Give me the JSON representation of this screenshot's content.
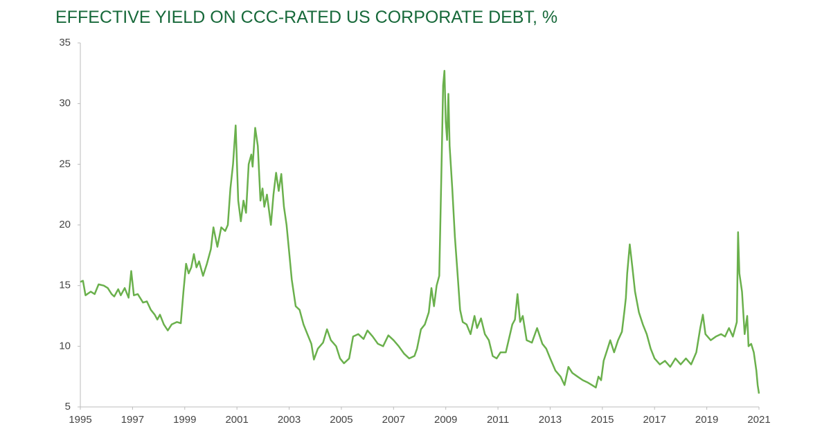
{
  "chart_data": {
    "type": "line",
    "title": "EFFECTIVE YIELD ON CCC-RATED US CORPORATE DEBT, %",
    "color": "#6ab04c",
    "x": [
      1995.0,
      1995.1,
      1995.2,
      1995.4,
      1995.55,
      1995.7,
      1995.9,
      1996.05,
      1996.2,
      1996.3,
      1996.45,
      1996.55,
      1996.7,
      1996.85,
      1996.95,
      1997.05,
      1997.2,
      1997.4,
      1997.55,
      1997.7,
      1997.85,
      1997.95,
      1998.05,
      1998.2,
      1998.35,
      1998.5,
      1998.7,
      1998.85,
      1998.95,
      1999.05,
      1999.15,
      1999.25,
      1999.35,
      1999.45,
      1999.55,
      1999.7,
      1999.85,
      2000.0,
      2000.1,
      2000.25,
      2000.4,
      2000.55,
      2000.65,
      2000.75,
      2000.85,
      2000.95,
      2001.05,
      2001.15,
      2001.25,
      2001.35,
      2001.45,
      2001.55,
      2001.6,
      2001.7,
      2001.8,
      2001.9,
      2001.98,
      2002.05,
      2002.15,
      2002.3,
      2002.4,
      2002.5,
      2002.6,
      2002.7,
      2002.8,
      2002.9,
      2003.0,
      2003.1,
      2003.25,
      2003.4,
      2003.55,
      2003.7,
      2003.85,
      2003.95,
      2004.1,
      2004.3,
      2004.45,
      2004.6,
      2004.8,
      2004.95,
      2005.1,
      2005.3,
      2005.45,
      2005.65,
      2005.85,
      2006.0,
      2006.2,
      2006.4,
      2006.6,
      2006.8,
      2007.0,
      2007.2,
      2007.4,
      2007.6,
      2007.8,
      2007.9,
      2008.05,
      2008.2,
      2008.35,
      2008.45,
      2008.55,
      2008.65,
      2008.75,
      2008.8,
      2008.85,
      2008.9,
      2008.95,
      2009.0,
      2009.05,
      2009.1,
      2009.15,
      2009.25,
      2009.35,
      2009.45,
      2009.55,
      2009.65,
      2009.8,
      2009.95,
      2010.1,
      2010.2,
      2010.35,
      2010.5,
      2010.65,
      2010.8,
      2010.95,
      2011.1,
      2011.3,
      2011.55,
      2011.65,
      2011.75,
      2011.85,
      2011.95,
      2012.1,
      2012.3,
      2012.5,
      2012.7,
      2012.85,
      2013.0,
      2013.2,
      2013.4,
      2013.55,
      2013.7,
      2013.85,
      2014.05,
      2014.25,
      2014.45,
      2014.6,
      2014.75,
      2014.85,
      2014.95,
      2015.05,
      2015.2,
      2015.3,
      2015.45,
      2015.6,
      2015.75,
      2015.85,
      2015.9,
      2015.95,
      2016.05,
      2016.15,
      2016.25,
      2016.4,
      2016.55,
      2016.7,
      2016.85,
      2017.0,
      2017.2,
      2017.4,
      2017.6,
      2017.8,
      2018.0,
      2018.2,
      2018.4,
      2018.6,
      2018.75,
      2018.85,
      2018.95,
      2019.15,
      2019.35,
      2019.55,
      2019.7,
      2019.85,
      2020.0,
      2020.15,
      2020.2,
      2020.25,
      2020.35,
      2020.45,
      2020.55,
      2020.6,
      2020.7,
      2020.8,
      2020.9,
      2020.95,
      2021.0
    ],
    "values": [
      15.3,
      15.4,
      14.2,
      14.5,
      14.3,
      15.1,
      15.0,
      14.8,
      14.3,
      14.1,
      14.7,
      14.2,
      14.8,
      14.0,
      16.2,
      14.2,
      14.3,
      13.6,
      13.7,
      13.0,
      12.6,
      12.2,
      12.6,
      11.8,
      11.3,
      11.8,
      12.0,
      11.9,
      14.5,
      16.8,
      16.0,
      16.5,
      17.6,
      16.5,
      17.0,
      15.8,
      16.8,
      18.0,
      19.8,
      18.2,
      19.8,
      19.5,
      20.0,
      23.0,
      25.0,
      28.2,
      22.0,
      20.3,
      22.0,
      21.0,
      25.0,
      25.8,
      24.8,
      28.0,
      26.5,
      22.0,
      23.0,
      21.5,
      22.5,
      20.0,
      22.5,
      24.3,
      22.8,
      24.2,
      21.5,
      20.0,
      17.8,
      15.5,
      13.3,
      13.0,
      11.8,
      11.0,
      10.2,
      8.9,
      9.8,
      10.3,
      11.4,
      10.5,
      10.0,
      9.0,
      8.6,
      9.0,
      10.8,
      11.0,
      10.6,
      11.3,
      10.8,
      10.2,
      10.0,
      10.9,
      10.5,
      10.0,
      9.4,
      9.0,
      9.2,
      9.8,
      11.4,
      11.8,
      12.8,
      14.8,
      13.3,
      15.0,
      15.8,
      21.0,
      26.0,
      31.5,
      32.7,
      28.5,
      27.0,
      30.8,
      26.5,
      23.0,
      19.0,
      16.0,
      13.0,
      12.0,
      11.8,
      11.0,
      12.5,
      11.5,
      12.3,
      11.0,
      10.5,
      9.2,
      9.0,
      9.5,
      9.5,
      11.8,
      12.2,
      14.3,
      12.0,
      12.5,
      10.5,
      10.3,
      11.5,
      10.2,
      9.8,
      9.0,
      8.0,
      7.5,
      6.8,
      8.3,
      7.8,
      7.5,
      7.2,
      7.0,
      6.8,
      6.6,
      7.5,
      7.2,
      8.8,
      9.8,
      10.5,
      9.5,
      10.5,
      11.2,
      13.0,
      14.0,
      16.0,
      18.4,
      16.5,
      14.5,
      12.8,
      11.8,
      11.0,
      9.8,
      9.0,
      8.5,
      8.8,
      8.3,
      9.0,
      8.5,
      9.0,
      8.5,
      9.5,
      11.5,
      12.6,
      11.0,
      10.5,
      10.8,
      11.0,
      10.8,
      11.5,
      10.8,
      12.0,
      19.4,
      16.0,
      14.5,
      11.0,
      12.5,
      10.0,
      10.2,
      9.5,
      8.0,
      6.8,
      6.1
    ],
    "xlim": [
      1995,
      2021
    ],
    "xticks": [
      1995,
      1997,
      1999,
      2001,
      2003,
      2005,
      2007,
      2009,
      2011,
      2013,
      2015,
      2017,
      2019,
      2021
    ],
    "ylim": [
      5,
      35
    ],
    "yticks": [
      5,
      10,
      15,
      20,
      25,
      30,
      35
    ]
  }
}
